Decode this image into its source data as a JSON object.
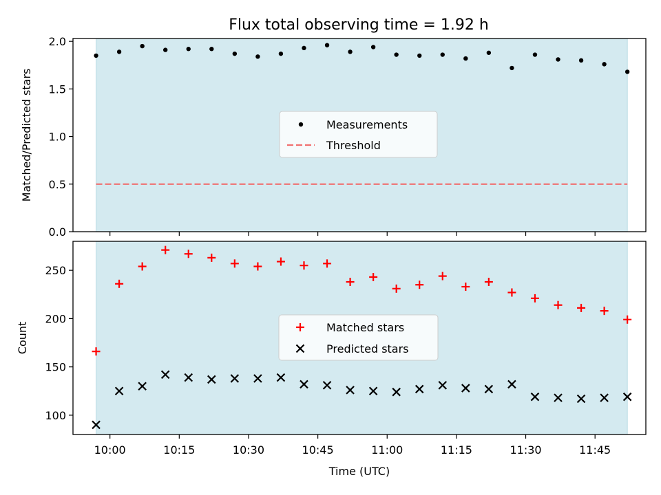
{
  "figure": {
    "title": "Flux total observing time = 1.92 h",
    "xlabel": "Time (UTC)",
    "shade_color": "#d4eaf0",
    "shade_edge": "#b9dbe4"
  },
  "chart_data": [
    {
      "type": "scatter",
      "title": "Flux total observing time = 1.92 h",
      "xlabel": "",
      "ylabel": "Matched/Predicted stars",
      "ylim": [
        0,
        2.03
      ],
      "xlim": [
        "09:52",
        "11:56"
      ],
      "xticks": [
        "10:00",
        "10:15",
        "10:30",
        "10:45",
        "11:00",
        "11:15",
        "11:30",
        "11:45"
      ],
      "xticklabels_visible": false,
      "yticks": [
        0.0,
        0.5,
        1.0,
        1.5,
        2.0
      ],
      "yticklabels": [
        "0.0",
        "0.5",
        "1.0",
        "1.5",
        "2.0"
      ],
      "shaded_span": [
        "09:57",
        "11:52"
      ],
      "grid": false,
      "legend_position": "center",
      "x": [
        "09:57",
        "10:02",
        "10:07",
        "10:12",
        "10:17",
        "10:22",
        "10:27",
        "10:32",
        "10:37",
        "10:42",
        "10:47",
        "10:52",
        "10:57",
        "11:02",
        "11:07",
        "11:12",
        "11:17",
        "11:22",
        "11:27",
        "11:32",
        "11:37",
        "11:42",
        "11:47",
        "11:52"
      ],
      "series": [
        {
          "name": "Measurements",
          "marker": "dot",
          "color": "#000000",
          "values": [
            1.85,
            1.89,
            1.95,
            1.91,
            1.92,
            1.92,
            1.87,
            1.84,
            1.87,
            1.93,
            1.96,
            1.89,
            1.94,
            1.86,
            1.85,
            1.86,
            1.82,
            1.88,
            1.72,
            1.86,
            1.81,
            1.8,
            1.76,
            1.68
          ]
        },
        {
          "name": "Threshold",
          "marker": "dashed-line",
          "color": "#f07070",
          "values": [
            0.5,
            0.5
          ]
        }
      ]
    },
    {
      "type": "scatter",
      "xlabel": "Time (UTC)",
      "ylabel": "Count",
      "ylim": [
        80,
        280
      ],
      "xlim": [
        "09:52",
        "11:56"
      ],
      "xticks": [
        "10:00",
        "10:15",
        "10:30",
        "10:45",
        "11:00",
        "11:15",
        "11:30",
        "11:45"
      ],
      "xticklabels": [
        "10:00",
        "10:15",
        "10:30",
        "10:45",
        "11:00",
        "11:15",
        "11:30",
        "11:45"
      ],
      "yticks": [
        100,
        150,
        200,
        250
      ],
      "yticklabels": [
        "100",
        "150",
        "200",
        "250"
      ],
      "shaded_span": [
        "09:57",
        "11:52"
      ],
      "grid": false,
      "legend_position": "center",
      "x": [
        "09:57",
        "10:02",
        "10:07",
        "10:12",
        "10:17",
        "10:22",
        "10:27",
        "10:32",
        "10:37",
        "10:42",
        "10:47",
        "10:52",
        "10:57",
        "11:02",
        "11:07",
        "11:12",
        "11:17",
        "11:22",
        "11:27",
        "11:32",
        "11:37",
        "11:42",
        "11:47",
        "11:52"
      ],
      "series": [
        {
          "name": "Matched stars",
          "marker": "plus",
          "color": "#ff0000",
          "values": [
            166,
            236,
            254,
            271,
            267,
            263,
            257,
            254,
            259,
            255,
            257,
            238,
            243,
            231,
            235,
            244,
            233,
            238,
            227,
            221,
            214,
            211,
            208,
            199
          ]
        },
        {
          "name": "Predicted stars",
          "marker": "x",
          "color": "#000000",
          "values": [
            90,
            125,
            130,
            142,
            139,
            137,
            138,
            138,
            139,
            132,
            131,
            126,
            125,
            124,
            127,
            131,
            128,
            127,
            132,
            119,
            118,
            117,
            118,
            119
          ]
        }
      ]
    }
  ]
}
